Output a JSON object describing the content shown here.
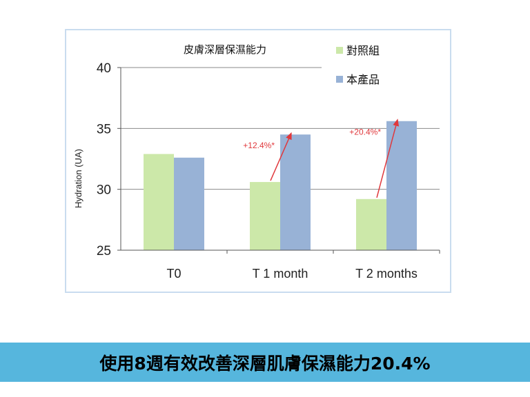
{
  "banner": {
    "text": "使用8週有效改善深層肌膚保濕能力20.4%"
  },
  "colors": {
    "control": "#cce8a9",
    "product": "#98b2d6",
    "arrow": "#e0383c",
    "grid": "#8a8a8a",
    "banner_bg": "#56b6dd"
  },
  "chart_data": {
    "type": "bar",
    "title": "皮膚深層保濕能力",
    "ylabel": "Hydration (UA)",
    "xlabel": "",
    "categories": [
      "T0",
      "T 1 month",
      "T 2 months"
    ],
    "series": [
      {
        "name": "對照組",
        "values": [
          32.9,
          30.6,
          29.2
        ]
      },
      {
        "name": "本產品",
        "values": [
          32.6,
          34.5,
          35.6
        ]
      }
    ],
    "ylim": [
      25,
      40
    ],
    "yticks": [
      25,
      30,
      35,
      40
    ],
    "grid": true,
    "legend": "top-right",
    "annotations": [
      {
        "text": "+12.4%*",
        "category": "T 1 month",
        "from": [
          30.6
        ],
        "to": [
          34.5
        ]
      },
      {
        "text": "+20.4%*",
        "category": "T 2 months",
        "from": [
          29.2
        ],
        "to": [
          35.6
        ]
      }
    ]
  }
}
